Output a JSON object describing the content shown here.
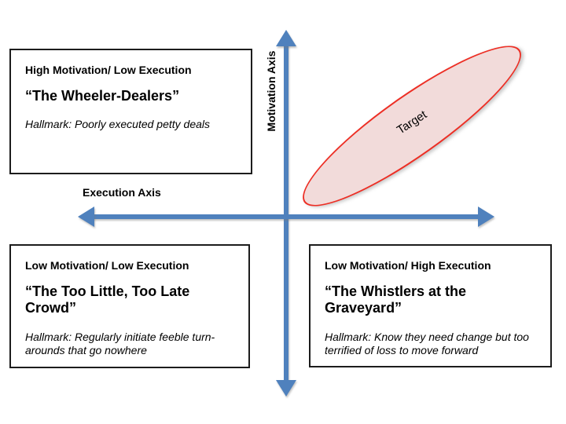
{
  "quadrants": {
    "top_left": {
      "header": "High Motivation/ Low Execution",
      "title": "“The Wheeler-Dealers”",
      "hallmark": "Hallmark: Poorly executed petty deals"
    },
    "bottom_left": {
      "header": "Low Motivation/ Low Execution",
      "title": "“The Too Little, Too Late Crowd”",
      "hallmark": "Hallmark: Regularly initiate feeble turn-arounds that go nowhere"
    },
    "bottom_right": {
      "header": "Low Motivation/ High Execution",
      "title": "“The Whistlers at the Graveyard”",
      "hallmark": "Hallmark: Know they need change but too terrified of loss to move forward"
    }
  },
  "axes": {
    "vertical_label": "Motivation Axis",
    "horizontal_label": "Execution Axis",
    "color": "#4f81bd"
  },
  "target": {
    "label": "Target",
    "fill_color": "#f2dbda",
    "border_color": "#ed2e24"
  }
}
